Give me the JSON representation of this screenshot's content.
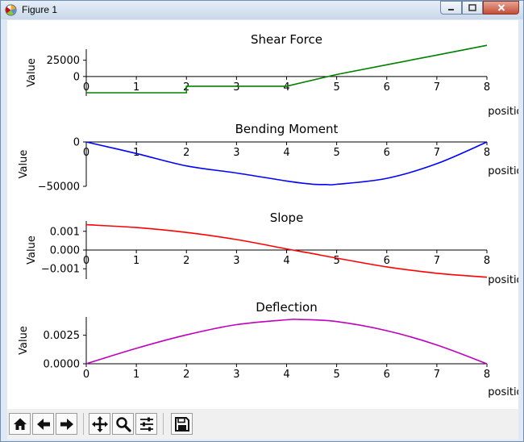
{
  "window": {
    "title": "Figure 1"
  },
  "toolbar": {
    "buttons": [
      {
        "name": "home",
        "icon": "home-icon"
      },
      {
        "name": "back",
        "icon": "left-arrow-icon"
      },
      {
        "name": "forward",
        "icon": "right-arrow-icon"
      },
      {
        "name": "pan",
        "icon": "move-icon"
      },
      {
        "name": "zoom",
        "icon": "magnifier-icon"
      },
      {
        "name": "configure-subplots",
        "icon": "sliders-icon"
      },
      {
        "name": "save",
        "icon": "floppy-disk-icon"
      }
    ]
  },
  "chart_data": [
    {
      "type": "line",
      "title": "Shear Force",
      "xlabel": "position",
      "ylabel": "Value",
      "color": "#008000",
      "xlim": [
        0,
        8
      ],
      "ylim": [
        -30000,
        42000
      ],
      "xticks": [
        "0",
        "1",
        "2",
        "3",
        "4",
        "5",
        "6",
        "7",
        "8"
      ],
      "yticks": [
        {
          "v": 0,
          "label": "0"
        },
        {
          "v": 25000,
          "label": "25000"
        }
      ],
      "x": [
        0,
        2,
        2,
        4,
        5,
        6,
        7,
        8
      ],
      "y": [
        -25000,
        -25000,
        -15000,
        -15000,
        3000,
        18000,
        33000,
        48000
      ]
    },
    {
      "type": "line",
      "title": "Bending Moment",
      "xlabel": "position",
      "ylabel": "Value",
      "color": "#0000ff",
      "xlim": [
        0,
        8
      ],
      "ylim": [
        -50000,
        0
      ],
      "xticks": [
        "0",
        "1",
        "2",
        "3",
        "4",
        "5",
        "6",
        "7",
        "8"
      ],
      "yticks": [
        {
          "v": 0,
          "label": "0"
        },
        {
          "v": -50000,
          "label": "−50000"
        }
      ],
      "x": [
        0,
        1,
        2,
        3,
        4,
        4.5,
        4.8,
        5,
        6,
        7,
        8
      ],
      "y": [
        0,
        -13000,
        -27000,
        -35000,
        -44000,
        -47500,
        -48000,
        -47700,
        -41000,
        -24500,
        0
      ]
    },
    {
      "type": "line",
      "title": "Slope",
      "xlabel": "position",
      "ylabel": "Value",
      "color": "#ff0000",
      "xlim": [
        0,
        8
      ],
      "ylim": [
        -0.00155,
        0.00155
      ],
      "xticks": [
        "0",
        "1",
        "2",
        "3",
        "4",
        "5",
        "6",
        "7",
        "8"
      ],
      "yticks": [
        {
          "v": 0.001,
          "label": "0.001"
        },
        {
          "v": 0,
          "label": "0.000"
        },
        {
          "v": -0.001,
          "label": "−0.001"
        }
      ],
      "x": [
        0,
        1,
        2,
        3,
        4,
        4.5,
        5,
        6,
        7,
        8
      ],
      "y": [
        0.00135,
        0.0012,
        0.00094,
        0.00056,
        6e-05,
        -0.00018,
        -0.00043,
        -0.0009,
        -0.00124,
        -0.00145
      ]
    },
    {
      "type": "line",
      "title": "Deflection",
      "xlabel": "position",
      "ylabel": "Value",
      "color": "#bf00bf",
      "xlim": [
        0,
        8
      ],
      "ylim": [
        0,
        0.0041
      ],
      "xticks": [
        "0",
        "1",
        "2",
        "3",
        "4",
        "5",
        "6",
        "7",
        "8"
      ],
      "yticks": [
        {
          "v": 0,
          "label": "0.0000"
        },
        {
          "v": 0.0025,
          "label": "0.0025"
        }
      ],
      "x": [
        0,
        1,
        2,
        3,
        4,
        4.25,
        5,
        6,
        7,
        8
      ],
      "y": [
        0,
        0.00135,
        0.00253,
        0.00343,
        0.00385,
        0.00388,
        0.0037,
        0.0029,
        0.00165,
        0
      ]
    }
  ]
}
